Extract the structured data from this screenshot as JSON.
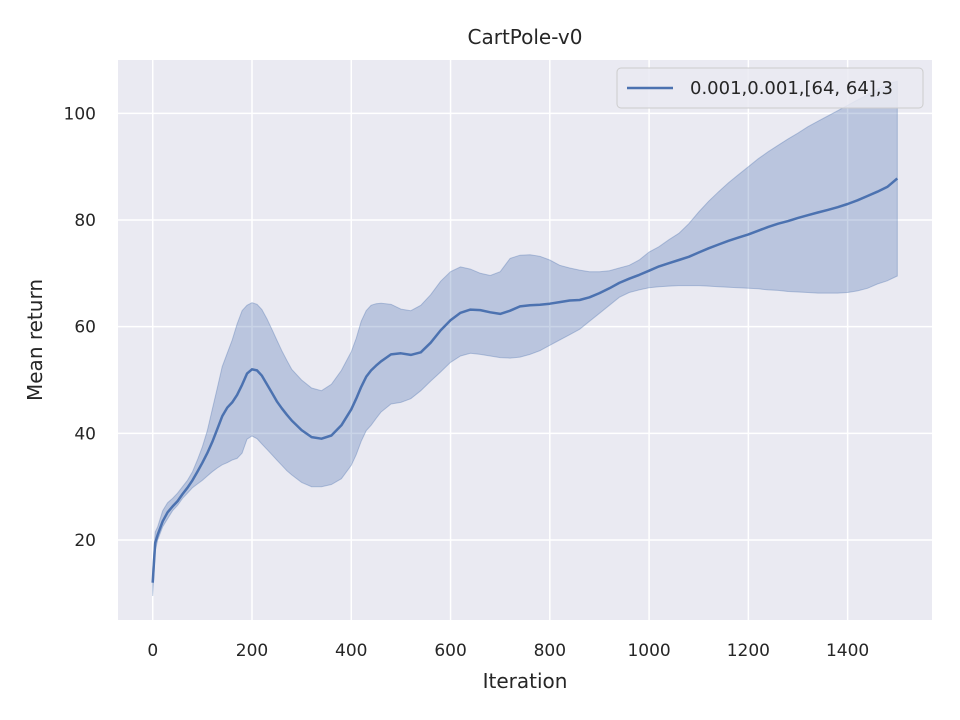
{
  "chart_data": {
    "type": "line",
    "title": "CartPole-v0",
    "xlabel": "Iteration",
    "ylabel": "Mean return",
    "xlim": [
      -70,
      1570
    ],
    "ylim": [
      5,
      110
    ],
    "xticks": [
      0,
      200,
      400,
      600,
      800,
      1000,
      1200,
      1400
    ],
    "yticks": [
      20,
      40,
      60,
      80,
      100
    ],
    "grid": true,
    "legend_position": "top-right",
    "series": [
      {
        "name": "0.001,0.001,[64, 64],3",
        "color": "#4c72b0",
        "x": [
          0,
          5,
          10,
          20,
          30,
          40,
          50,
          60,
          70,
          80,
          90,
          100,
          110,
          120,
          130,
          140,
          150,
          160,
          170,
          180,
          190,
          200,
          210,
          220,
          230,
          240,
          250,
          260,
          270,
          280,
          300,
          320,
          340,
          360,
          380,
          400,
          410,
          420,
          430,
          440,
          450,
          460,
          480,
          500,
          520,
          540,
          560,
          580,
          600,
          620,
          640,
          660,
          680,
          700,
          720,
          740,
          760,
          780,
          800,
          820,
          840,
          860,
          880,
          900,
          920,
          940,
          960,
          980,
          1000,
          1020,
          1040,
          1060,
          1080,
          1100,
          1120,
          1140,
          1160,
          1180,
          1200,
          1220,
          1240,
          1260,
          1280,
          1300,
          1320,
          1340,
          1360,
          1380,
          1400,
          1420,
          1440,
          1460,
          1480,
          1500
        ],
        "mean": [
          12,
          19.5,
          21,
          23.5,
          25.2,
          26.3,
          27.3,
          28.6,
          29.8,
          31.2,
          32.8,
          34.5,
          36.3,
          38.4,
          40.8,
          43.2,
          44.8,
          45.8,
          47.2,
          49.1,
          51.2,
          52.0,
          51.8,
          50.8,
          49.2,
          47.6,
          46.0,
          44.7,
          43.5,
          42.4,
          40.6,
          39.3,
          39.0,
          39.6,
          41.5,
          44.5,
          46.5,
          48.7,
          50.6,
          51.8,
          52.7,
          53.5,
          54.8,
          55.0,
          54.7,
          55.2,
          57.0,
          59.3,
          61.2,
          62.6,
          63.2,
          63.1,
          62.7,
          62.4,
          63.0,
          63.8,
          64.0,
          64.1,
          64.3,
          64.6,
          64.9,
          65.0,
          65.5,
          66.3,
          67.2,
          68.2,
          69.0,
          69.7,
          70.5,
          71.3,
          71.9,
          72.5,
          73.1,
          73.9,
          74.7,
          75.4,
          76.1,
          76.7,
          77.3,
          78.0,
          78.7,
          79.3,
          79.8,
          80.4,
          80.9,
          81.4,
          81.9,
          82.4,
          83.0,
          83.7,
          84.5,
          85.3,
          86.2,
          87.8
        ],
        "lower": [
          9.5,
          18.0,
          20.0,
          22.5,
          24.0,
          25.5,
          26.5,
          27.8,
          28.8,
          29.8,
          30.5,
          31.2,
          32.0,
          32.8,
          33.5,
          34.1,
          34.5,
          35.0,
          35.3,
          36.3,
          38.9,
          39.5,
          39.0,
          38.0,
          37.0,
          36.0,
          35.0,
          34.0,
          33.0,
          32.2,
          30.8,
          30.0,
          30.0,
          30.4,
          31.5,
          34.0,
          36.0,
          38.5,
          40.5,
          41.5,
          42.8,
          44.0,
          45.5,
          45.8,
          46.5,
          48.0,
          49.8,
          51.5,
          53.3,
          54.5,
          55.0,
          54.8,
          54.5,
          54.2,
          54.1,
          54.3,
          54.8,
          55.5,
          56.5,
          57.5,
          58.5,
          59.5,
          61.0,
          62.5,
          64.0,
          65.5,
          66.4,
          66.9,
          67.3,
          67.5,
          67.6,
          67.7,
          67.7,
          67.7,
          67.6,
          67.5,
          67.4,
          67.3,
          67.2,
          67.1,
          66.9,
          66.8,
          66.6,
          66.5,
          66.4,
          66.3,
          66.3,
          66.3,
          66.4,
          66.7,
          67.2,
          68.0,
          68.6,
          69.5
        ],
        "upper": [
          14.5,
          21.5,
          22.5,
          25.5,
          27.0,
          27.8,
          28.8,
          30.0,
          31.2,
          32.8,
          35.0,
          37.5,
          40.5,
          44.5,
          48.5,
          52.5,
          55.0,
          57.5,
          60.5,
          63.0,
          64.0,
          64.5,
          64.2,
          63.2,
          61.5,
          59.5,
          57.5,
          55.5,
          53.7,
          52.0,
          50.0,
          48.5,
          48.0,
          49.2,
          51.8,
          55.3,
          57.8,
          61.0,
          63.0,
          64.0,
          64.3,
          64.4,
          64.2,
          63.3,
          63.0,
          64.0,
          66.0,
          68.5,
          70.3,
          71.2,
          70.8,
          70.0,
          69.6,
          70.3,
          72.8,
          73.4,
          73.5,
          73.2,
          72.5,
          71.5,
          71.0,
          70.6,
          70.3,
          70.3,
          70.5,
          71.0,
          71.5,
          72.5,
          74.0,
          75.0,
          76.3,
          77.5,
          79.3,
          81.5,
          83.5,
          85.3,
          87.0,
          88.5,
          90.0,
          91.5,
          92.8,
          94.0,
          95.2,
          96.3,
          97.5,
          98.5,
          99.5,
          100.5,
          101.5,
          102.5,
          103.5,
          104.5,
          105.5,
          106.0
        ]
      }
    ]
  }
}
